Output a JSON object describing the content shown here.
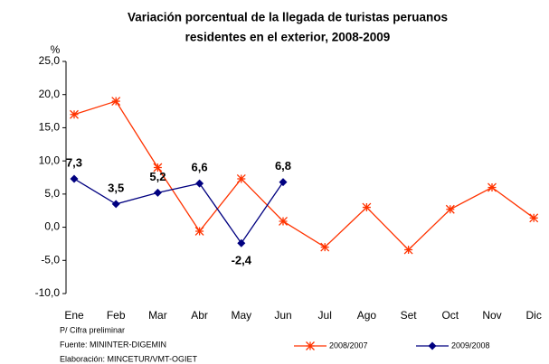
{
  "chart_data": {
    "type": "line",
    "title": [
      "Variación porcentual de la llegada  de turistas peruanos",
      "residentes en el exterior, 2008-2009"
    ],
    "y_label": "%",
    "categories": [
      "Ene",
      "Feb",
      "Mar",
      "Abr",
      "May",
      "Jun",
      "Jul",
      "Ago",
      "Set",
      "Oct",
      "Nov",
      "Dic"
    ],
    "series": [
      {
        "name": "2008/2007",
        "color": "#ff3300",
        "marker": "star",
        "values": [
          17.0,
          19.0,
          9.0,
          -0.6,
          7.3,
          0.9,
          -3.0,
          3.0,
          -3.4,
          2.7,
          6.0,
          1.4
        ]
      },
      {
        "name": "2009/2008",
        "color": "#000080",
        "marker": "diamond",
        "values": [
          7.3,
          3.5,
          5.2,
          6.6,
          -2.4,
          6.8,
          null,
          null,
          null,
          null,
          null,
          null
        ],
        "value_labels": [
          "7,3",
          "3,5",
          "5,2",
          "6,6",
          "-2,4",
          "6,8",
          null,
          null,
          null,
          null,
          null,
          null
        ]
      }
    ],
    "ylim": [
      -10,
      25
    ],
    "yticks": [
      {
        "value": -10,
        "label": "-10,0"
      },
      {
        "value": -5,
        "label": "-5,0"
      },
      {
        "value": 0,
        "label": "0,0"
      },
      {
        "value": 5,
        "label": "5,0"
      },
      {
        "value": 10,
        "label": "10,0"
      },
      {
        "value": 15,
        "label": "15,0"
      },
      {
        "value": 20,
        "label": "20,0"
      },
      {
        "value": 25,
        "label": "25,0"
      }
    ],
    "legend": "bottom-right",
    "notes": [
      "P/ Cifra preliminar",
      "Fuente: MININTER-DIGEMIN",
      "Elaboración: MINCETUR/VMT-OGIET"
    ]
  }
}
